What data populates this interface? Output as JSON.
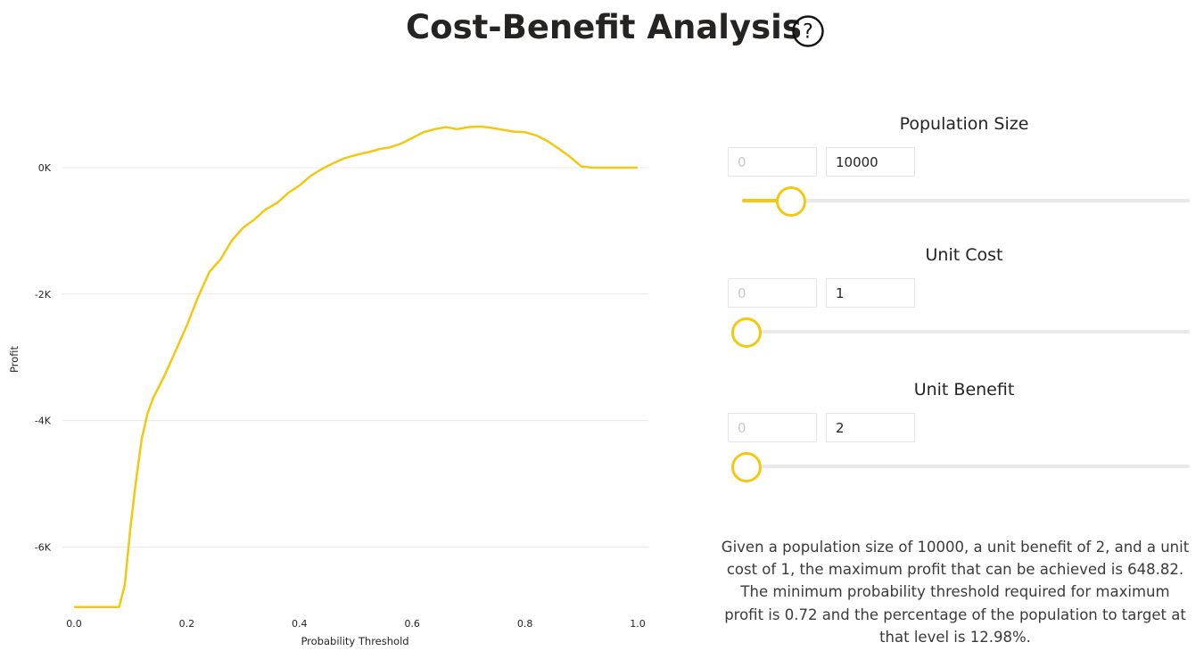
{
  "header": {
    "title": "Cost-Benefit Analysis",
    "help_icon": "question-circle-icon"
  },
  "controls": {
    "population": {
      "label": "Population Size",
      "min": "0",
      "value": "10000",
      "slider_fraction": 0.1
    },
    "unit_cost": {
      "label": "Unit Cost",
      "min": "0",
      "value": "1",
      "slider_fraction": 0.0
    },
    "unit_benefit": {
      "label": "Unit Benefit",
      "min": "0",
      "value": "2",
      "slider_fraction": 0.0
    }
  },
  "summary": "Given a population size of 10000, a unit benefit of 2, and a unit cost of 1, the maximum profit that can be achieved is 648.82. The minimum probability threshold required for maximum profit is 0.72 and the percentage of the population to target at that level is 12.98%.",
  "colors": {
    "line": "#f2c811",
    "grid": "#e8e8e8",
    "track": "#e9e9e9"
  },
  "chart_data": {
    "type": "line",
    "title": "",
    "xlabel": "Probability Threshold",
    "ylabel": "Profit",
    "xlim": [
      0.0,
      1.0
    ],
    "ylim": [
      -7000,
      850
    ],
    "grid": true,
    "x_ticks": [
      {
        "v": 0.0,
        "label": "0.0"
      },
      {
        "v": 0.2,
        "label": "0.2"
      },
      {
        "v": 0.4,
        "label": "0.4"
      },
      {
        "v": 0.6,
        "label": "0.6"
      },
      {
        "v": 0.8,
        "label": "0.8"
      },
      {
        "v": 1.0,
        "label": "1.0"
      }
    ],
    "y_ticks": [
      {
        "v": 0,
        "label": "0K"
      },
      {
        "v": -2000,
        "label": "-2K"
      },
      {
        "v": -4000,
        "label": "-4K"
      },
      {
        "v": -6000,
        "label": "-6K"
      }
    ],
    "series": [
      {
        "name": "",
        "x": [
          0.0,
          0.04,
          0.08,
          0.09,
          0.1,
          0.11,
          0.12,
          0.13,
          0.14,
          0.16,
          0.18,
          0.2,
          0.22,
          0.24,
          0.26,
          0.28,
          0.3,
          0.32,
          0.34,
          0.36,
          0.38,
          0.4,
          0.42,
          0.44,
          0.46,
          0.48,
          0.5,
          0.52,
          0.54,
          0.56,
          0.58,
          0.6,
          0.62,
          0.64,
          0.66,
          0.68,
          0.7,
          0.72,
          0.74,
          0.76,
          0.78,
          0.8,
          0.82,
          0.84,
          0.86,
          0.88,
          0.9,
          0.92,
          0.94,
          0.96,
          0.98,
          1.0
        ],
        "y": [
          -6950,
          -6950,
          -6950,
          -6600,
          -5700,
          -4950,
          -4300,
          -3900,
          -3650,
          -3300,
          -2900,
          -2500,
          -2050,
          -1650,
          -1450,
          -1150,
          -950,
          -820,
          -660,
          -560,
          -400,
          -280,
          -130,
          -20,
          70,
          150,
          200,
          240,
          290,
          320,
          380,
          470,
          560,
          610,
          640,
          610,
          640,
          650,
          630,
          600,
          570,
          560,
          510,
          420,
          300,
          170,
          20,
          0,
          0,
          0,
          0,
          0
        ]
      }
    ]
  }
}
